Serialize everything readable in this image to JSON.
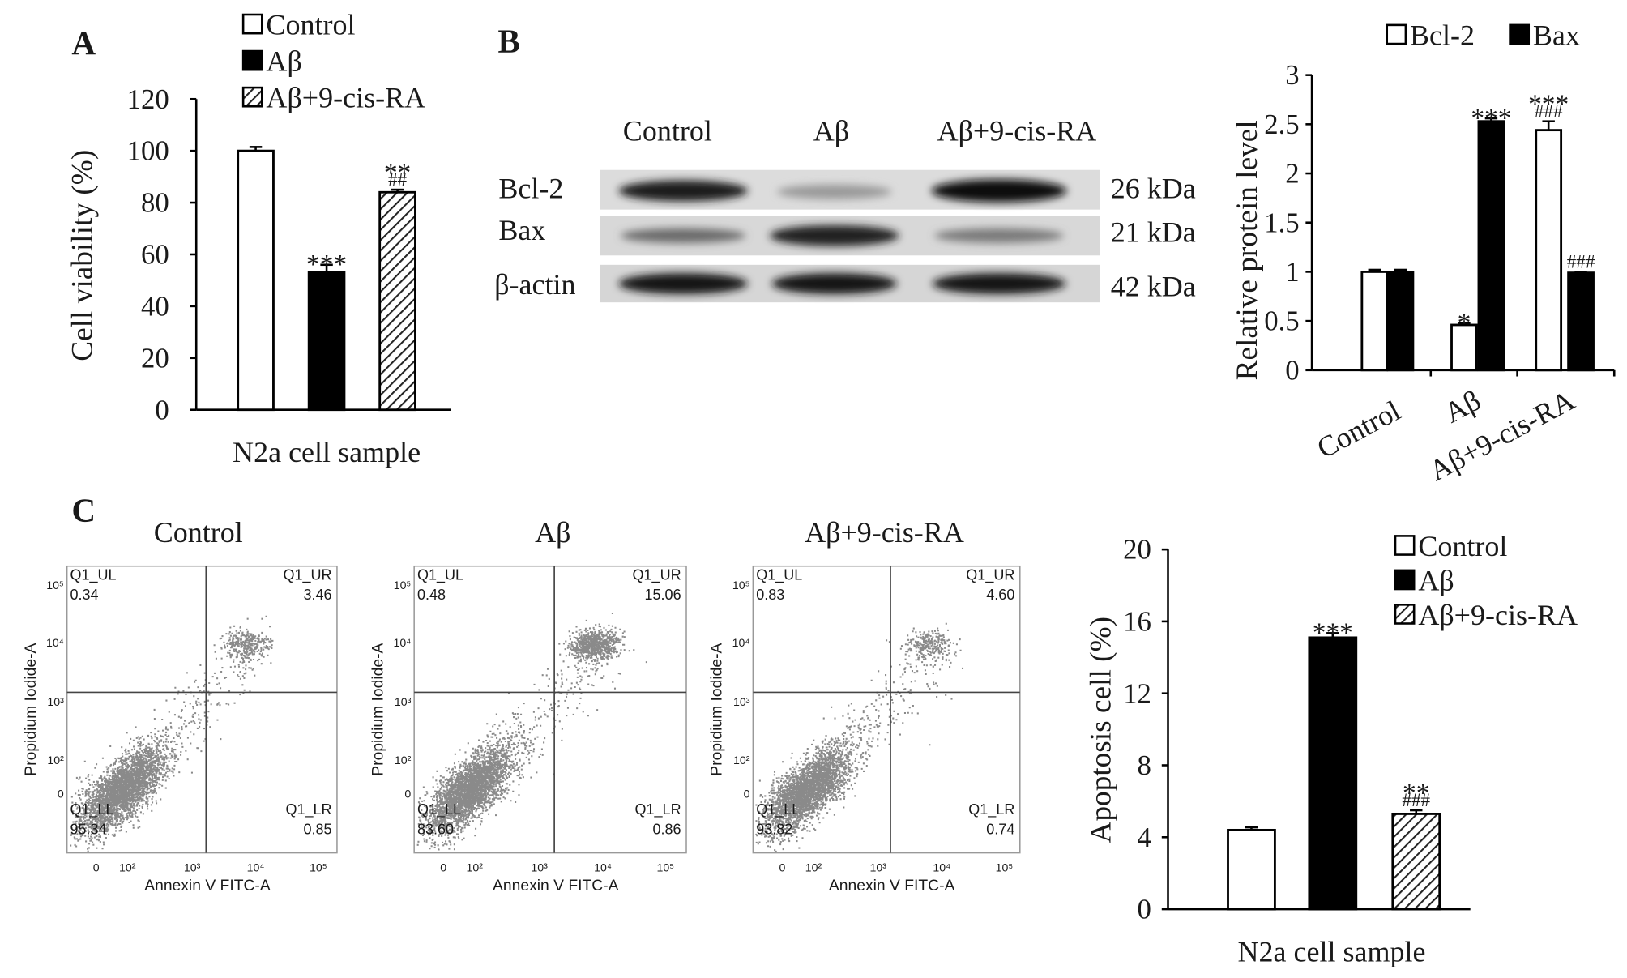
{
  "chart_data": [
    {
      "type": "bar",
      "panel": "A",
      "ylabel": "Cell viability (%)",
      "xlabel": "N2a cell sample",
      "categories": [
        "Control",
        "Aβ",
        "Aβ+9-cis-RA"
      ],
      "values": [
        100,
        53,
        84
      ],
      "errors": [
        1.5,
        3,
        1
      ],
      "fills": [
        "#ffffff",
        "#000000",
        "hatch"
      ],
      "annotations": [
        [],
        [
          "***"
        ],
        [
          "**",
          "##"
        ]
      ],
      "ylim": [
        0,
        120
      ],
      "yticks": [
        0,
        20,
        40,
        60,
        80,
        100,
        120
      ],
      "legend": "vertical"
    },
    {
      "type": "grouped_bar",
      "ylabel": "Relative protein level",
      "categories": [
        "Control",
        "Aβ",
        "Aβ+9-cis-RA"
      ],
      "series": [
        {
          "name": "Bcl-2",
          "color": "#ffffff",
          "values": [
            1.0,
            0.46,
            2.44
          ],
          "errors": [
            0.02,
            0.02,
            0.09
          ],
          "annotations": [
            [],
            [
              "*"
            ],
            [
              "***",
              "###"
            ]
          ]
        },
        {
          "name": "Bax",
          "color": "#000000",
          "values": [
            1.0,
            2.53,
            0.99
          ],
          "errors": [
            0.02,
            0.03,
            0.01
          ],
          "annotations": [
            [],
            [
              "***"
            ],
            [
              "###"
            ]
          ]
        }
      ],
      "ylim": [
        0,
        3
      ],
      "yticks": [
        0,
        0.5,
        1,
        1.5,
        2,
        2.5,
        3
      ],
      "legend": "horizontal"
    },
    {
      "type": "bar",
      "ylabel": "Apoptosis cell (%)",
      "xlabel": "N2a cell sample",
      "categories": [
        "Control",
        "Aβ",
        "Aβ+9-cis-RA"
      ],
      "values": [
        4.4,
        15.1,
        5.3
      ],
      "errors": [
        0.15,
        0.25,
        0.2
      ],
      "fills": [
        "#ffffff",
        "#000000",
        "hatch"
      ],
      "annotations": [
        [],
        [
          "***"
        ],
        [
          "**",
          "###"
        ]
      ],
      "ylim": [
        0,
        20
      ],
      "yticks": [
        0,
        4,
        8,
        12,
        16,
        20
      ],
      "legend": "vertical"
    }
  ],
  "blot": {
    "panel": "B",
    "columns": [
      "Control",
      "Aβ",
      "Aβ+9-cis-RA"
    ],
    "rows": [
      {
        "name": "Bcl-2",
        "size": "26 kDa"
      },
      {
        "name": "Bax",
        "size": "21 kDa"
      },
      {
        "name": "β-actin",
        "size": "42 kDa"
      }
    ]
  },
  "flow": {
    "panel": "C",
    "x_label": "Annexin V FITC-A",
    "y_label": "Propidium Iodide-A",
    "x_ticks": [
      "0",
      "10²",
      "10³",
      "10⁴",
      "10⁵"
    ],
    "y_ticks": [
      "0",
      "10²",
      "10³",
      "10⁴",
      "10⁵"
    ],
    "plots": [
      {
        "title": "Control",
        "quadrants": {
          "UL": {
            "label": "Q1_UL",
            "value": "0.34"
          },
          "UR": {
            "label": "Q1_UR",
            "value": "3.46"
          },
          "LL": {
            "label": "Q1_LL",
            "value": "95.34"
          },
          "LR": {
            "label": "Q1_LR",
            "value": "0.85"
          }
        }
      },
      {
        "title": "Aβ",
        "quadrants": {
          "UL": {
            "label": "Q1_UL",
            "value": "0.48"
          },
          "UR": {
            "label": "Q1_UR",
            "value": "15.06"
          },
          "LL": {
            "label": "Q1_LL",
            "value": "83.60"
          },
          "LR": {
            "label": "Q1_LR",
            "value": "0.86"
          }
        }
      },
      {
        "title": "Aβ+9-cis-RA",
        "quadrants": {
          "UL": {
            "label": "Q1_UL",
            "value": "0.83"
          },
          "UR": {
            "label": "Q1_UR",
            "value": "4.60"
          },
          "LL": {
            "label": "Q1_LL",
            "value": "93.82"
          },
          "LR": {
            "label": "Q1_LR",
            "value": "0.74"
          }
        }
      }
    ]
  }
}
